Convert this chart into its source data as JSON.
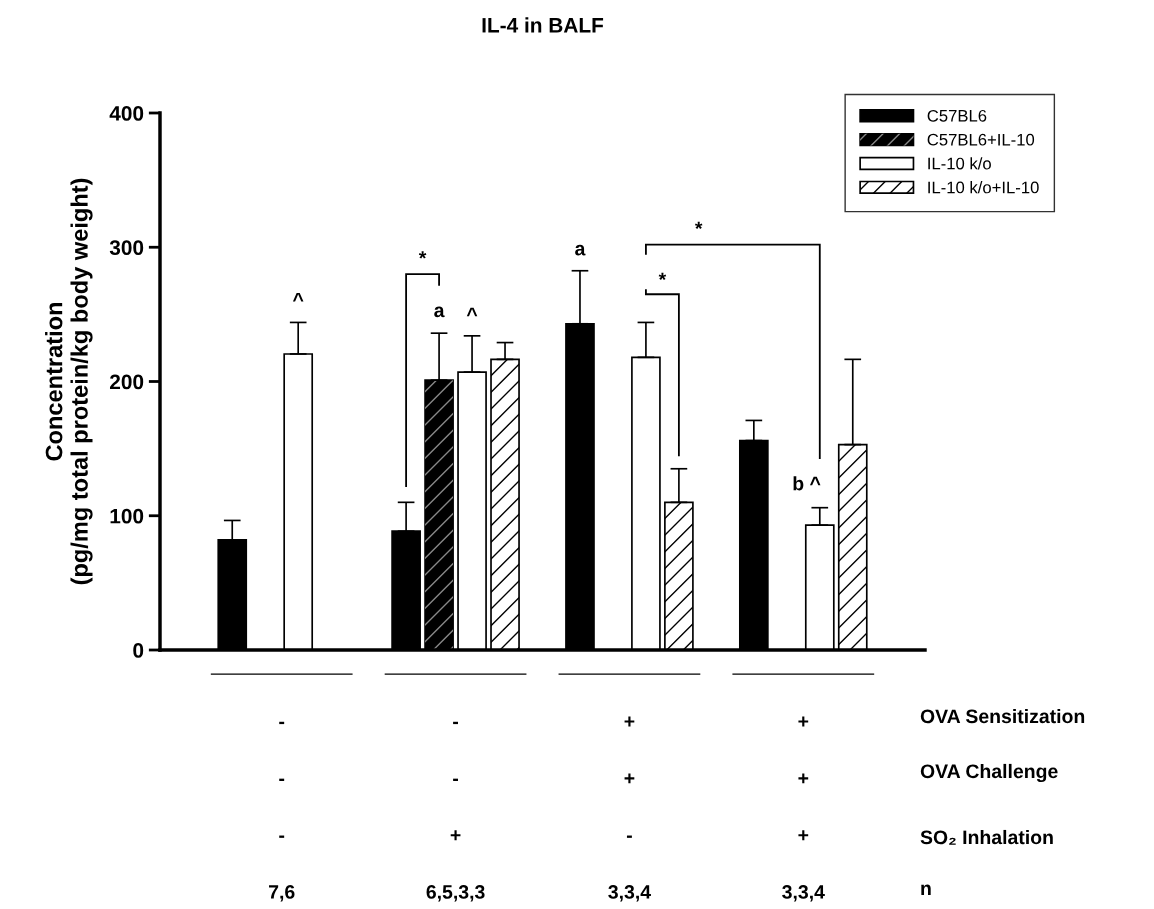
{
  "chart_data": {
    "type": "bar",
    "title": "IL-4 in BALF",
    "ylabel": "Concentration\n(pg/mg total protein/kg body weight)",
    "categories": [
      "-\n-\n-\n7,6",
      "-\n-\n+\n6,5,3,3",
      "+\n+\n-\n3,3,4",
      "+\n+\n+\n3,3,4"
    ],
    "series": [
      {
        "name": "C57BL6",
        "color": "#000000",
        "values": [
          82,
          88.5,
          243,
          156
        ],
        "errors": [
          14.5,
          21.5,
          39.5,
          15
        ]
      },
      {
        "name": "C57BL6+IL-10",
        "color": "#000000",
        "values": [
          null,
          201,
          null,
          null
        ],
        "errors": [
          null,
          35,
          null,
          null
        ]
      },
      {
        "name": "IL-10 k/o",
        "color": "#ffffff",
        "values": [
          220.5,
          207,
          218,
          93
        ],
        "errors": [
          23.5,
          27,
          26,
          13
        ]
      },
      {
        "name": "IL-10 k/o+IL-10",
        "color": "#ffffff",
        "values": [
          null,
          216.5,
          110,
          153
        ],
        "errors": [
          null,
          12.5,
          25,
          63.5
        ]
      }
    ],
    "ylim": [
      0,
      400
    ],
    "yticks": [
      0,
      100,
      200,
      300,
      400
    ],
    "legend": "top right",
    "grid": false,
    "annotations": [
      "^",
      "a",
      "^",
      "*",
      "a",
      "*",
      "*",
      "b ^",
      "OVA Sensitization",
      "OVA Challenge",
      "SO₂ Inhalation",
      "n"
    ]
  }
}
